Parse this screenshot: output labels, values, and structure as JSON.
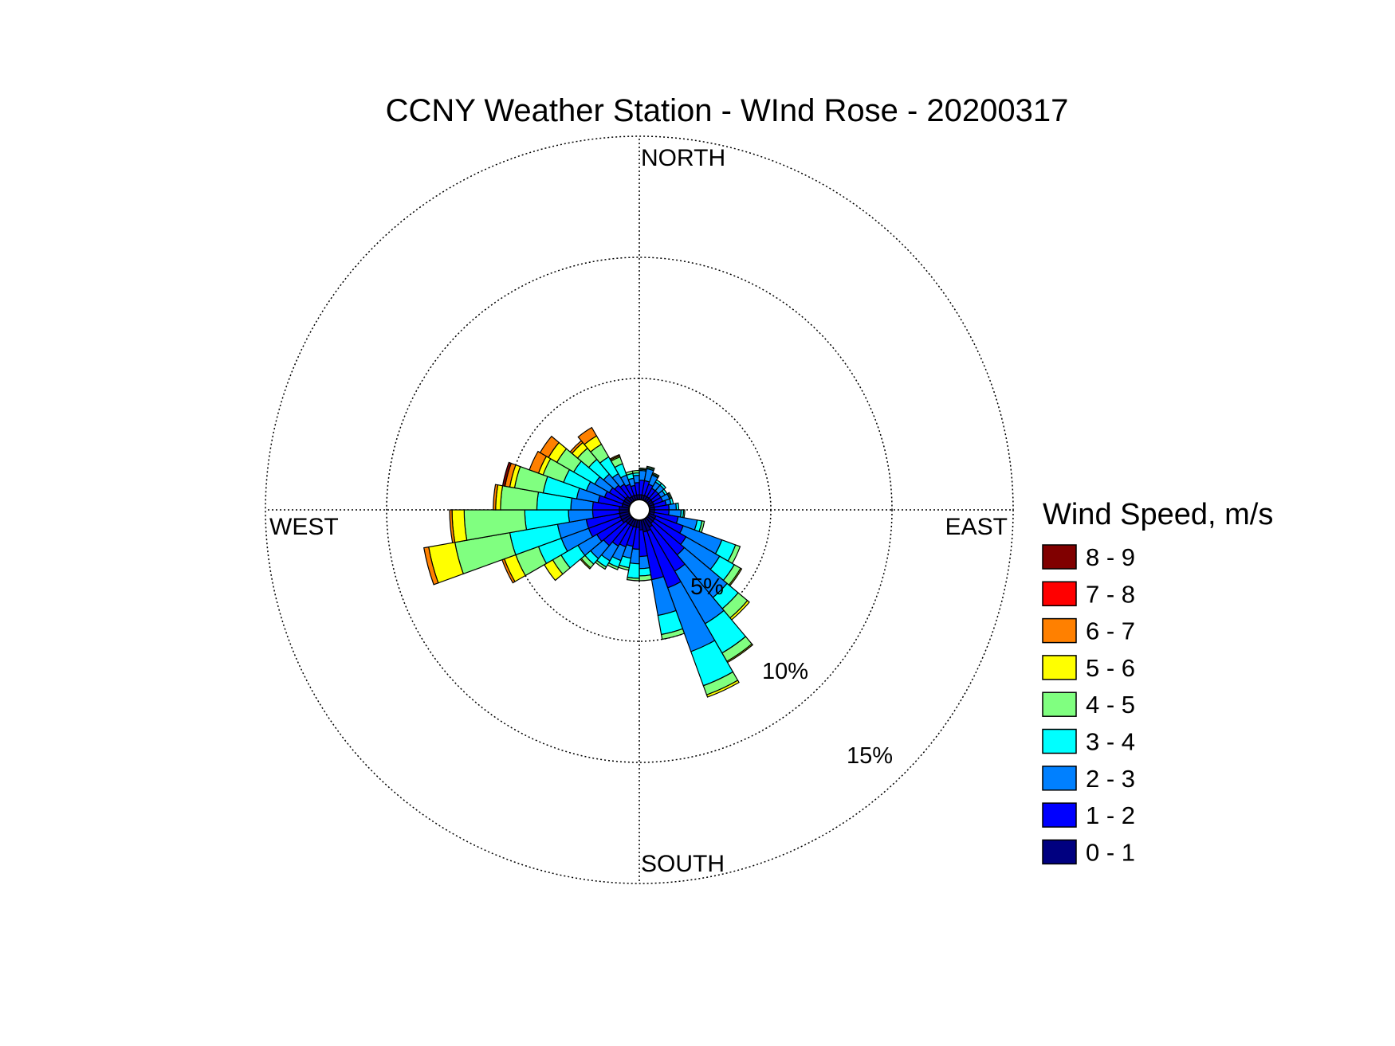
{
  "chart_data": {
    "type": "wind-rose",
    "title": "CCNY Weather Station - WInd Rose - 20200317",
    "directions": {
      "north": "NORTH",
      "south": "SOUTH",
      "east": "EAST",
      "west": "WEST"
    },
    "radial_axis": {
      "unit": "%",
      "rings": [
        {
          "value": 5,
          "label": "5%"
        },
        {
          "value": 10,
          "label": "10%"
        },
        {
          "value": 15,
          "label": "15%"
        }
      ],
      "max": 15
    },
    "grid": true,
    "legend": {
      "title": "Wind Speed, m/s",
      "position": "right",
      "bins": [
        {
          "label": "8 - 9",
          "color": "#800000"
        },
        {
          "label": "7 - 8",
          "color": "#ff0000"
        },
        {
          "label": "6 - 7",
          "color": "#ff8000"
        },
        {
          "label": "5 - 6",
          "color": "#ffff00"
        },
        {
          "label": "4 - 5",
          "color": "#80ff80"
        },
        {
          "label": "3 - 4",
          "color": "#00ffff"
        },
        {
          "label": "2 - 3",
          "color": "#0080ff"
        },
        {
          "label": "1 - 2",
          "color": "#0000ff"
        },
        {
          "label": "0 - 1",
          "color": "#000080"
        }
      ]
    },
    "sectors": [
      {
        "direction_deg": 5,
        "cumulative_pct": [
          0.2,
          0.8,
          1.2,
          1.25,
          1.3,
          1.3,
          1.3,
          1.3,
          1.3
        ]
      },
      {
        "direction_deg": 15,
        "cumulative_pct": [
          0.2,
          0.8,
          1.3,
          1.35,
          1.4,
          1.4,
          1.4,
          1.4,
          1.4
        ]
      },
      {
        "direction_deg": 25,
        "cumulative_pct": [
          0.2,
          0.7,
          1.1,
          1.15,
          1.2,
          1.2,
          1.2,
          1.2,
          1.2
        ]
      },
      {
        "direction_deg": 35,
        "cumulative_pct": [
          0.2,
          0.6,
          0.9,
          1.0,
          1.0,
          1.0,
          1.0,
          1.0,
          1.0
        ]
      },
      {
        "direction_deg": 45,
        "cumulative_pct": [
          0.2,
          0.6,
          0.9,
          1.0,
          1.0,
          1.0,
          1.0,
          1.0,
          1.0
        ]
      },
      {
        "direction_deg": 55,
        "cumulative_pct": [
          0.2,
          0.6,
          0.8,
          0.9,
          0.9,
          0.9,
          0.9,
          0.9,
          0.9
        ]
      },
      {
        "direction_deg": 65,
        "cumulative_pct": [
          0.2,
          0.6,
          0.9,
          0.95,
          1.0,
          1.0,
          1.0,
          1.0,
          1.0
        ]
      },
      {
        "direction_deg": 75,
        "cumulative_pct": [
          0.2,
          0.7,
          0.9,
          1.0,
          1.0,
          1.0,
          1.0,
          1.0,
          1.0
        ]
      },
      {
        "direction_deg": 85,
        "cumulative_pct": [
          0.2,
          0.8,
          1.1,
          1.2,
          1.2,
          1.2,
          1.2,
          1.2,
          1.2
        ]
      },
      {
        "direction_deg": 95,
        "cumulative_pct": [
          0.2,
          0.8,
          1.3,
          1.4,
          1.45,
          1.45,
          1.45,
          1.45,
          1.45
        ]
      },
      {
        "direction_deg": 105,
        "cumulative_pct": [
          0.2,
          1.2,
          2.0,
          2.2,
          2.3,
          2.3,
          2.3,
          2.3,
          2.3
        ]
      },
      {
        "direction_deg": 115,
        "cumulative_pct": [
          0.3,
          1.5,
          3.2,
          3.8,
          4.0,
          4.0,
          4.0,
          4.0,
          4.0
        ]
      },
      {
        "direction_deg": 125,
        "cumulative_pct": [
          0.3,
          1.8,
          3.4,
          4.1,
          4.4,
          4.45,
          4.45,
          4.45,
          4.45
        ]
      },
      {
        "direction_deg": 135,
        "cumulative_pct": [
          0.3,
          2.0,
          4.3,
          4.9,
          5.4,
          5.5,
          5.5,
          5.5,
          5.5
        ]
      },
      {
        "direction_deg": 145,
        "cumulative_pct": [
          0.4,
          2.5,
          5.0,
          6.4,
          6.8,
          6.85,
          6.85,
          6.85,
          6.85
        ]
      },
      {
        "direction_deg": 155,
        "cumulative_pct": [
          0.5,
          3.0,
          5.8,
          7.3,
          7.7,
          7.8,
          7.8,
          7.8,
          7.8
        ]
      },
      {
        "direction_deg": 165,
        "cumulative_pct": [
          0.5,
          2.5,
          4.0,
          4.8,
          5.0,
          5.0,
          5.0,
          5.0,
          5.0
        ]
      },
      {
        "direction_deg": 175,
        "cumulative_pct": [
          0.4,
          1.5,
          2.0,
          2.3,
          2.5,
          2.5,
          2.5,
          2.5,
          2.5
        ]
      },
      {
        "direction_deg": 185,
        "cumulative_pct": [
          0.3,
          1.2,
          1.8,
          2.4,
          2.5,
          2.5,
          2.5,
          2.5,
          2.5
        ]
      },
      {
        "direction_deg": 195,
        "cumulative_pct": [
          0.3,
          1.1,
          1.6,
          2.0,
          2.1,
          2.1,
          2.1,
          2.1,
          2.1
        ]
      },
      {
        "direction_deg": 205,
        "cumulative_pct": [
          0.3,
          1.2,
          1.8,
          2.1,
          2.2,
          2.2,
          2.2,
          2.2,
          2.2
        ]
      },
      {
        "direction_deg": 215,
        "cumulative_pct": [
          0.3,
          1.3,
          2.0,
          2.3,
          2.4,
          2.4,
          2.4,
          2.4,
          2.4
        ]
      },
      {
        "direction_deg": 225,
        "cumulative_pct": [
          0.3,
          1.5,
          2.2,
          2.5,
          2.7,
          2.75,
          2.75,
          2.75,
          2.75
        ]
      },
      {
        "direction_deg": 235,
        "cumulative_pct": [
          0.4,
          1.6,
          2.5,
          3.3,
          3.7,
          4.1,
          4.1,
          4.1,
          4.1
        ]
      },
      {
        "direction_deg": 245,
        "cumulative_pct": [
          0.4,
          1.8,
          3.0,
          4.0,
          5.0,
          5.5,
          5.6,
          5.6,
          5.6
        ]
      },
      {
        "direction_deg": 255,
        "cumulative_pct": [
          0.4,
          1.8,
          3.0,
          5.0,
          7.3,
          8.4,
          8.6,
          8.6,
          8.6
        ]
      },
      {
        "direction_deg": 265,
        "cumulative_pct": [
          0.4,
          1.5,
          2.5,
          4.3,
          6.8,
          7.3,
          7.4,
          7.4,
          7.4
        ]
      },
      {
        "direction_deg": 275,
        "cumulative_pct": [
          0.4,
          1.5,
          2.4,
          3.8,
          5.3,
          5.5,
          5.6,
          5.6,
          5.6
        ]
      },
      {
        "direction_deg": 285,
        "cumulative_pct": [
          0.3,
          1.3,
          2.2,
          3.6,
          4.8,
          5.0,
          5.2,
          5.2,
          5.3
        ]
      },
      {
        "direction_deg": 295,
        "cumulative_pct": [
          0.3,
          1.1,
          1.9,
          2.9,
          3.8,
          4.0,
          4.4,
          4.4,
          4.4
        ]
      },
      {
        "direction_deg": 305,
        "cumulative_pct": [
          0.3,
          1.0,
          1.7,
          2.7,
          3.5,
          3.9,
          4.3,
          4.3,
          4.3
        ]
      },
      {
        "direction_deg": 315,
        "cumulative_pct": [
          0.3,
          0.9,
          1.5,
          2.3,
          2.9,
          3.2,
          3.3,
          3.3,
          3.3
        ]
      },
      {
        "direction_deg": 325,
        "cumulative_pct": [
          0.2,
          0.8,
          1.3,
          2.1,
          2.7,
          3.1,
          3.5,
          3.5,
          3.5
        ]
      },
      {
        "direction_deg": 335,
        "cumulative_pct": [
          0.2,
          0.7,
          1.1,
          1.6,
          1.9,
          1.95,
          2.0,
          2.0,
          2.0
        ]
      },
      {
        "direction_deg": 345,
        "cumulative_pct": [
          0.2,
          0.6,
          0.9,
          1.1,
          1.2,
          1.2,
          1.2,
          1.2,
          1.2
        ]
      },
      {
        "direction_deg": 355,
        "cumulative_pct": [
          0.2,
          0.7,
          1.0,
          1.1,
          1.2,
          1.2,
          1.2,
          1.2,
          1.2
        ]
      }
    ]
  }
}
